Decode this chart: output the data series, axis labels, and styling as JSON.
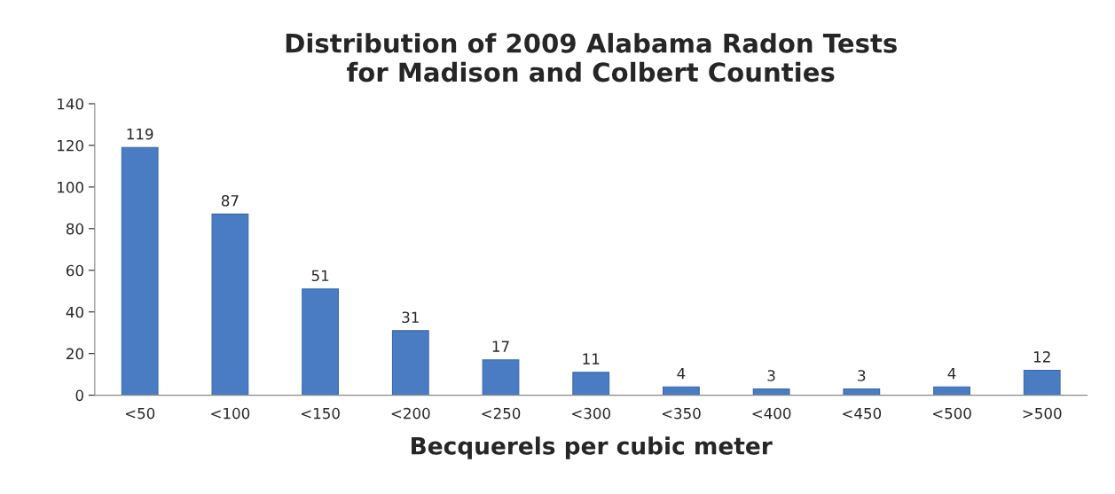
{
  "chart_data": {
    "type": "bar",
    "title": "Distribution of 2009 Alabama Radon Tests\nfor Madison and Colbert Counties",
    "xlabel": "Becquerels per cubic meter",
    "categories": [
      "<50",
      "<100",
      "<150",
      "<200",
      "<250",
      "<300",
      "<350",
      "<400",
      "<450",
      "<500",
      ">500"
    ],
    "values": [
      119,
      87,
      51,
      31,
      17,
      11,
      4,
      3,
      3,
      4,
      12
    ],
    "color": "#4a7cc4",
    "ylim": [
      0,
      140
    ],
    "yticks": [
      0,
      20,
      40,
      60,
      80,
      100,
      120,
      140
    ],
    "data_labels": true,
    "grid": false
  }
}
